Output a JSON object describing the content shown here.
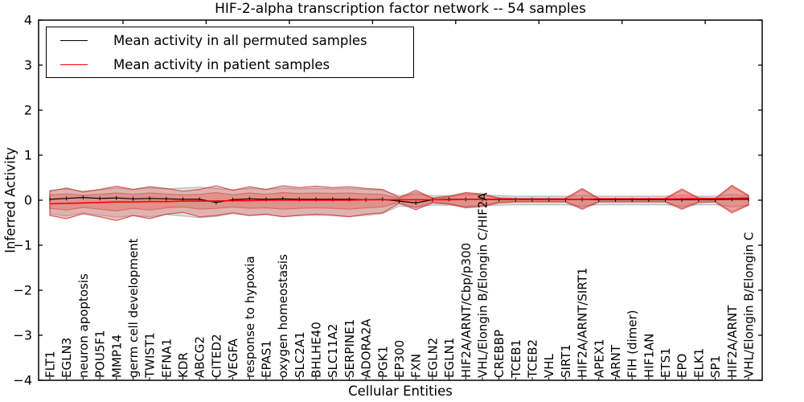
{
  "figure": {
    "title": "HIF-2-alpha transcription factor network -- 54 samples",
    "xlabel": "Cellular Entities",
    "ylabel": "Inferred Activity"
  },
  "chart_data": {
    "type": "line",
    "title": "HIF-2-alpha transcription factor network -- 54 samples",
    "xlabel": "Cellular Entities",
    "ylabel": "Inferred Activity",
    "ylim": [
      -4,
      4
    ],
    "yticks": [
      4,
      3,
      2,
      1,
      0,
      -1,
      -2,
      -3,
      -4
    ],
    "grid": false,
    "legend_position": "upper left",
    "legend": [
      {
        "label": "Mean activity in all permuted samples",
        "color": "#000000"
      },
      {
        "label": "Mean activity in patient samples",
        "color": "#ff0000"
      }
    ],
    "categories": [
      "FLT1",
      "EGLN3",
      "neuron apoptosis",
      "POU5F1",
      "MMP14",
      "germ cell development",
      "TWIST1",
      "EFNA1",
      "KDR",
      "ABCG2",
      "CITED2",
      "VEGFA",
      "response to hypoxia",
      "EPAS1",
      "oxygen homeostasis",
      "SLC2A1",
      "BHLHE40",
      "SLC11A2",
      "SERPINE1",
      "ADORA2A",
      "PGK1",
      "EP300",
      "FXN",
      "EGLN2",
      "EGLN1",
      "HIF2A/ARNT/Cbp/p300",
      "VHL/Elongin B/Elongin C/HIF2A",
      "CREBBP",
      "TCEB1",
      "TCEB2",
      "VHL",
      "SIRT1",
      "HIF2A/ARNT/SIRT1",
      "APEX1",
      "ARNT",
      "FIH (dimer)",
      "HIF1AN",
      "ETS1",
      "EPO",
      "ELK1",
      "SP1",
      "HIF2A/ARNT",
      "VHL/Elongin B/Elongin C"
    ],
    "series": [
      {
        "name": "permuted-mean",
        "label": "Mean activity in all permuted samples",
        "color": "#000000",
        "width": 1.2,
        "markers": true,
        "values": [
          0.02,
          0.04,
          0.06,
          0.04,
          0.05,
          0.03,
          0.04,
          0.03,
          0.02,
          0.02,
          -0.05,
          0.01,
          0.03,
          0.02,
          0.03,
          0.02,
          0.02,
          0.02,
          0.02,
          0.01,
          0.02,
          -0.02,
          -0.06,
          0.01,
          0.02,
          0.02,
          0.02,
          0.01,
          0.01,
          0.01,
          0.01,
          0.01,
          0.02,
          0.01,
          0.01,
          0.01,
          0.01,
          0.01,
          0.01,
          0.01,
          0.01,
          0.02,
          0.02
        ]
      },
      {
        "name": "patient-mean",
        "label": "Mean activity in patient samples",
        "color": "#ff0000",
        "width": 1.6,
        "markers": false,
        "values": [
          -0.08,
          -0.07,
          -0.06,
          -0.05,
          -0.04,
          -0.04,
          -0.03,
          -0.03,
          -0.02,
          -0.02,
          -0.02,
          -0.01,
          -0.01,
          0.0,
          0.0,
          0.0,
          0.0,
          0.0,
          0.0,
          0.01,
          0.01,
          0.01,
          0.01,
          0.01,
          0.01,
          0.02,
          0.02,
          0.02,
          0.02,
          0.02,
          0.02,
          0.02,
          0.02,
          0.03,
          0.03,
          0.03,
          0.03,
          0.03,
          0.03,
          0.04,
          0.04,
          0.04,
          0.05
        ]
      }
    ],
    "bands": [
      {
        "name": "permuted-range",
        "fill": "rgba(150,150,150,0.28)",
        "stroke": "rgba(130,130,130,0.5)",
        "upper": [
          0.22,
          0.25,
          0.2,
          0.23,
          0.27,
          0.24,
          0.27,
          0.25,
          0.27,
          0.29,
          0.26,
          0.23,
          0.26,
          0.24,
          0.27,
          0.25,
          0.26,
          0.25,
          0.26,
          0.24,
          0.22,
          0.1,
          0.13,
          0.1,
          0.1,
          0.12,
          0.12,
          0.1,
          0.09,
          0.09,
          0.09,
          0.09,
          0.11,
          0.09,
          0.09,
          0.09,
          0.09,
          0.09,
          0.11,
          0.09,
          0.09,
          0.13,
          0.1
        ],
        "lower": [
          -0.3,
          -0.35,
          -0.28,
          -0.33,
          -0.38,
          -0.34,
          -0.37,
          -0.32,
          -0.35,
          -0.39,
          -0.36,
          -0.3,
          -0.34,
          -0.32,
          -0.36,
          -0.33,
          -0.34,
          -0.32,
          -0.36,
          -0.34,
          -0.3,
          -0.13,
          -0.15,
          -0.11,
          -0.11,
          -0.13,
          -0.13,
          -0.11,
          -0.1,
          -0.1,
          -0.1,
          -0.1,
          -0.13,
          -0.1,
          -0.1,
          -0.1,
          -0.1,
          -0.1,
          -0.13,
          -0.1,
          -0.1,
          -0.15,
          -0.11
        ]
      },
      {
        "name": "patient-range-outer",
        "fill": "rgba(222,70,60,0.30)",
        "stroke": "rgba(200,50,45,0.75)",
        "upper": [
          0.2,
          0.27,
          0.18,
          0.24,
          0.31,
          0.24,
          0.3,
          0.26,
          0.2,
          0.24,
          0.32,
          0.22,
          0.3,
          0.24,
          0.32,
          0.28,
          0.31,
          0.28,
          0.3,
          0.26,
          0.24,
          0.06,
          0.22,
          0.05,
          0.09,
          0.17,
          0.14,
          0.05,
          0.04,
          0.04,
          0.04,
          0.04,
          0.26,
          0.04,
          0.04,
          0.04,
          0.04,
          0.04,
          0.25,
          0.05,
          0.04,
          0.33,
          0.11
        ],
        "lower": [
          -0.34,
          -0.41,
          -0.3,
          -0.37,
          -0.45,
          -0.34,
          -0.41,
          -0.31,
          -0.27,
          -0.37,
          -0.34,
          -0.28,
          -0.34,
          -0.31,
          -0.37,
          -0.34,
          -0.31,
          -0.34,
          -0.37,
          -0.31,
          -0.28,
          -0.07,
          -0.21,
          -0.06,
          -0.09,
          -0.17,
          -0.14,
          -0.06,
          -0.04,
          -0.04,
          -0.04,
          -0.04,
          -0.2,
          -0.04,
          -0.04,
          -0.04,
          -0.04,
          -0.04,
          -0.2,
          -0.05,
          -0.04,
          -0.28,
          -0.11
        ]
      },
      {
        "name": "patient-range-inner",
        "fill": "rgba(222,70,60,0.30)",
        "stroke": "rgba(200,50,45,0.45)",
        "upper": [
          0.12,
          0.14,
          0.11,
          0.13,
          0.16,
          0.13,
          0.16,
          0.14,
          0.12,
          0.13,
          0.17,
          0.12,
          0.16,
          0.13,
          0.17,
          0.15,
          0.16,
          0.15,
          0.16,
          0.14,
          0.13,
          0.04,
          0.18,
          0.04,
          0.07,
          0.15,
          0.12,
          0.04,
          0.03,
          0.03,
          0.03,
          0.03,
          0.23,
          0.03,
          0.03,
          0.03,
          0.03,
          0.03,
          0.22,
          0.04,
          0.03,
          0.3,
          0.09
        ],
        "lower": [
          -0.18,
          -0.22,
          -0.16,
          -0.2,
          -0.24,
          -0.18,
          -0.22,
          -0.17,
          -0.15,
          -0.2,
          -0.18,
          -0.15,
          -0.18,
          -0.17,
          -0.2,
          -0.18,
          -0.17,
          -0.18,
          -0.2,
          -0.17,
          -0.15,
          -0.05,
          -0.17,
          -0.04,
          -0.07,
          -0.15,
          -0.12,
          -0.04,
          -0.03,
          -0.03,
          -0.03,
          -0.03,
          -0.17,
          -0.03,
          -0.03,
          -0.03,
          -0.03,
          -0.03,
          -0.17,
          -0.04,
          -0.03,
          -0.25,
          -0.09
        ]
      }
    ]
  }
}
